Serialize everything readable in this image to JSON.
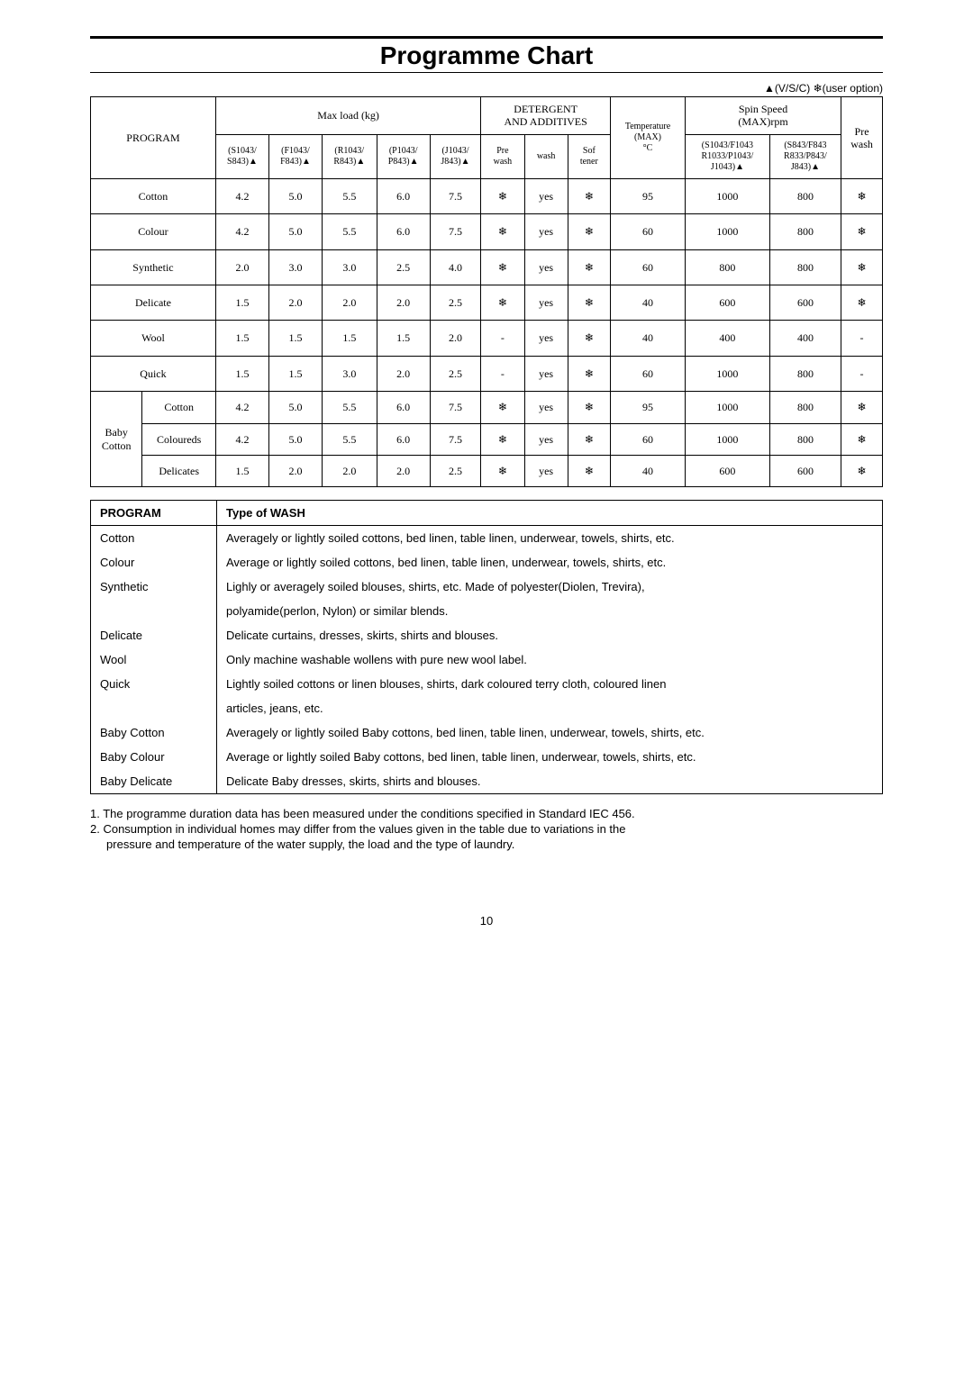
{
  "title": "Programme Chart",
  "legend": "▲(V/S/C) ❄(user option)",
  "table": {
    "headers": {
      "program": "PROGRAM",
      "maxload": "Max load (kg)",
      "detergent": "DETERGENT\nAND ADDITIVES",
      "temp": "Temperature\n(MAX)\n°C",
      "spin": "Spin Speed\n(MAX)rpm",
      "pre": "Pre\nwash",
      "loadCols": [
        "(S1043/\nS843)▲",
        "(F1043/\nF843)▲",
        "(R1043/\nR843)▲",
        "(P1043/\nP843)▲",
        "(J1043/\nJ843)▲"
      ],
      "detCols": [
        "Pre\nwash",
        "wash",
        "Sof\ntener"
      ],
      "spinCols": [
        "(S1043/F1043\nR1033/P1043/\nJ1043)▲",
        "(S843/F843\nR833/P843/\nJ843)▲"
      ]
    },
    "rows": [
      {
        "prog": "Cotton",
        "vals": [
          "4.2",
          "5.0",
          "5.5",
          "6.0",
          "7.5",
          "❄",
          "yes",
          "❄",
          "95",
          "1000",
          "800",
          "❄"
        ]
      },
      {
        "prog": "Colour",
        "vals": [
          "4.2",
          "5.0",
          "5.5",
          "6.0",
          "7.5",
          "❄",
          "yes",
          "❄",
          "60",
          "1000",
          "800",
          "❄"
        ]
      },
      {
        "prog": "Synthetic",
        "vals": [
          "2.0",
          "3.0",
          "3.0",
          "2.5",
          "4.0",
          "❄",
          "yes",
          "❄",
          "60",
          "800",
          "800",
          "❄"
        ]
      },
      {
        "prog": "Delicate",
        "vals": [
          "1.5",
          "2.0",
          "2.0",
          "2.0",
          "2.5",
          "❄",
          "yes",
          "❄",
          "40",
          "600",
          "600",
          "❄"
        ]
      },
      {
        "prog": "Wool",
        "vals": [
          "1.5",
          "1.5",
          "1.5",
          "1.5",
          "2.0",
          "-",
          "yes",
          "❄",
          "40",
          "400",
          "400",
          "-"
        ]
      },
      {
        "prog": "Quick",
        "vals": [
          "1.5",
          "1.5",
          "3.0",
          "2.0",
          "2.5",
          "-",
          "yes",
          "❄",
          "60",
          "1000",
          "800",
          "-"
        ]
      }
    ],
    "babyGroup": "Baby\nCotton",
    "babyRows": [
      {
        "prog": "Cotton",
        "vals": [
          "4.2",
          "5.0",
          "5.5",
          "6.0",
          "7.5",
          "❄",
          "yes",
          "❄",
          "95",
          "1000",
          "800",
          "❄"
        ]
      },
      {
        "prog": "Coloureds",
        "vals": [
          "4.2",
          "5.0",
          "5.5",
          "6.0",
          "7.5",
          "❄",
          "yes",
          "❄",
          "60",
          "1000",
          "800",
          "❄"
        ]
      },
      {
        "prog": "Delicates",
        "vals": [
          "1.5",
          "2.0",
          "2.0",
          "2.0",
          "2.5",
          "❄",
          "yes",
          "❄",
          "40",
          "600",
          "600",
          "❄"
        ]
      }
    ]
  },
  "washTypes": {
    "header": {
      "c1": "PROGRAM",
      "c2": "Type of WASH"
    },
    "rows": [
      {
        "p": "Cotton",
        "d": "Averagely or lightly soiled cottons, bed linen, table linen, underwear, towels, shirts, etc."
      },
      {
        "p": "Colour",
        "d": "Average or lightly soiled cottons, bed linen, table linen, underwear, towels, shirts, etc."
      },
      {
        "p": "Synthetic",
        "d": "Lighly or averagely soiled blouses, shirts, etc. Made of polyester(Diolen, Trevira),"
      },
      {
        "p": "",
        "d": "polyamide(perlon, Nylon) or similar blends."
      },
      {
        "p": "Delicate",
        "d": "Delicate curtains, dresses, skirts, shirts and blouses."
      },
      {
        "p": "Wool",
        "d": "Only machine washable wollens with pure new wool label."
      },
      {
        "p": "Quick",
        "d": "Lightly soiled cottons or linen blouses, shirts, dark coloured terry cloth, coloured linen"
      },
      {
        "p": "",
        "d": "articles, jeans, etc."
      },
      {
        "p": "Baby Cotton",
        "d": "Averagely or lightly soiled Baby cottons, bed linen, table linen, underwear, towels, shirts, etc."
      },
      {
        "p": "Baby Colour",
        "d": "Average or lightly soiled Baby cottons, bed linen, table linen, underwear, towels, shirts, etc."
      },
      {
        "p": "Baby Delicate",
        "d": "Delicate Baby dresses, skirts, shirts and blouses."
      }
    ]
  },
  "notes": [
    "1.  The programme duration data has been measured under the conditions specified in Standard IEC 456.",
    "2.  Consumption in individual homes may differ from the values given in the table due to variations in the",
    "     pressure and temperature of the water supply, the load and the type of laundry."
  ],
  "pageNum": "10"
}
